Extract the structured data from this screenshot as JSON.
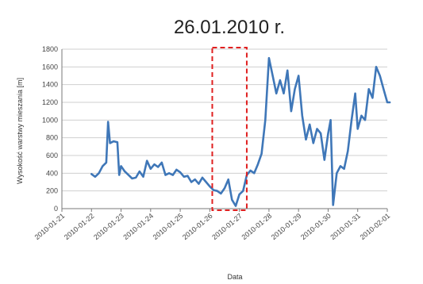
{
  "chart_data": {
    "type": "line",
    "title": "26.01.2010 r.",
    "xlabel": "Data",
    "ylabel": "Wysokość warstwy mieszania [m]",
    "ylim": [
      0,
      1800
    ],
    "xlim": [
      "2010-01-21",
      "2010-02-01"
    ],
    "grid": true,
    "y_ticks": [
      "0",
      "200",
      "400",
      "600",
      "800",
      "1000",
      "1200",
      "1400",
      "1600",
      "1800"
    ],
    "x_ticks": [
      "2010-01-21",
      "2010-01-22",
      "2010-01-23",
      "2010-01-24",
      "2010-01-25",
      "2010-01-26",
      "2010-01-27",
      "2010-01-28",
      "2010-01-29",
      "2010-01-30",
      "2010-01-31",
      "2010-02-01"
    ],
    "highlight": {
      "x_start": "2010-01-26T02:00",
      "x_end": "2010-01-27T06:00"
    },
    "colors": {
      "series": "#3f77b8",
      "highlight": "#e02020"
    },
    "series": [
      {
        "x": [
          "2010-01-22T00:00",
          "2010-01-22T03:00",
          "2010-01-22T06:00",
          "2010-01-22T09:00",
          "2010-01-22T12:00",
          "2010-01-22T13:30",
          "2010-01-22T15:00",
          "2010-01-22T18:00",
          "2010-01-22T21:00",
          "2010-01-22T22:30",
          "2010-01-23T00:00",
          "2010-01-23T03:00",
          "2010-01-23T06:00",
          "2010-01-23T09:00",
          "2010-01-23T12:00",
          "2010-01-23T15:00",
          "2010-01-23T18:00",
          "2010-01-23T21:00",
          "2010-01-24T00:00",
          "2010-01-24T03:00",
          "2010-01-24T06:00",
          "2010-01-24T09:00",
          "2010-01-24T12:00",
          "2010-01-24T15:00",
          "2010-01-24T18:00",
          "2010-01-24T21:00",
          "2010-01-25T00:00",
          "2010-01-25T03:00",
          "2010-01-25T06:00",
          "2010-01-25T09:00",
          "2010-01-25T12:00",
          "2010-01-25T15:00",
          "2010-01-25T18:00",
          "2010-01-25T21:00",
          "2010-01-26T00:00",
          "2010-01-26T03:00",
          "2010-01-26T06:00",
          "2010-01-26T09:00",
          "2010-01-26T12:00",
          "2010-01-26T15:00",
          "2010-01-26T18:00",
          "2010-01-26T21:00",
          "2010-01-27T00:00",
          "2010-01-27T03:00",
          "2010-01-27T06:00",
          "2010-01-27T09:00",
          "2010-01-27T12:00",
          "2010-01-27T15:00",
          "2010-01-27T18:00",
          "2010-01-27T21:00",
          "2010-01-28T00:00",
          "2010-01-28T03:00",
          "2010-01-28T06:00",
          "2010-01-28T09:00",
          "2010-01-28T12:00",
          "2010-01-28T15:00",
          "2010-01-28T18:00",
          "2010-01-28T21:00",
          "2010-01-29T00:00",
          "2010-01-29T03:00",
          "2010-01-29T06:00",
          "2010-01-29T09:00",
          "2010-01-29T12:00",
          "2010-01-29T15:00",
          "2010-01-29T18:00",
          "2010-01-29T21:00",
          "2010-01-30T00:00",
          "2010-01-30T02:00",
          "2010-01-30T04:00",
          "2010-01-30T07:00",
          "2010-01-30T10:00",
          "2010-01-30T13:00",
          "2010-01-30T16:00",
          "2010-01-30T19:00",
          "2010-01-30T22:00",
          "2010-01-31T00:00",
          "2010-01-31T03:00",
          "2010-01-31T06:00",
          "2010-01-31T09:00",
          "2010-01-31T12:00",
          "2010-01-31T15:00",
          "2010-01-31T18:00",
          "2010-01-31T21:00",
          "2010-02-01T00:00",
          "2010-02-01T02:00"
        ],
        "values": [
          390,
          360,
          400,
          480,
          520,
          980,
          740,
          760,
          750,
          380,
          480,
          420,
          380,
          340,
          350,
          420,
          360,
          540,
          450,
          500,
          470,
          520,
          380,
          400,
          380,
          440,
          410,
          360,
          370,
          300,
          330,
          280,
          350,
          300,
          250,
          210,
          200,
          170,
          230,
          330,
          100,
          30,
          160,
          200,
          380,
          430,
          400,
          500,
          620,
          1000,
          1700,
          1500,
          1300,
          1450,
          1300,
          1560,
          1100,
          1350,
          1500,
          1050,
          780,
          950,
          740,
          900,
          850,
          550,
          850,
          1000,
          40,
          400,
          480,
          450,
          650,
          1000,
          1300,
          900,
          1050,
          1000,
          1350,
          1250,
          1600,
          1500,
          1350,
          1200,
          1200
        ]
      }
    ]
  }
}
